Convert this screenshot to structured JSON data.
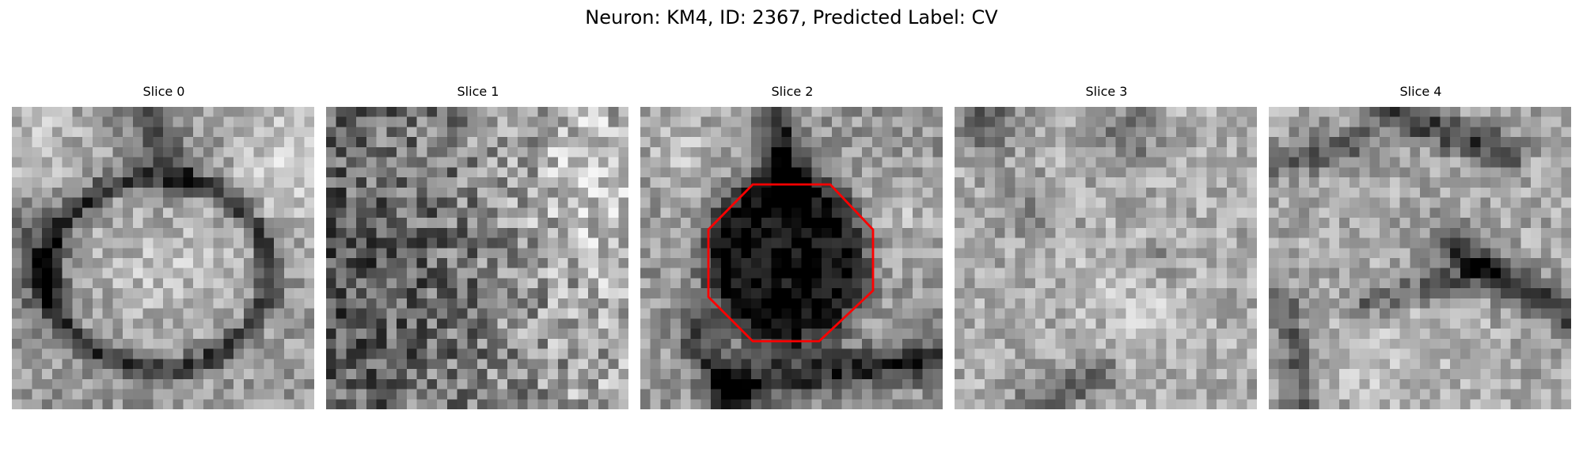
{
  "figure": {
    "title": "Neuron: KM4, ID: 2367, Predicted Label: CV"
  },
  "slices": [
    {
      "title": "Slice 0",
      "overlay": false
    },
    {
      "title": "Slice 1",
      "overlay": false
    },
    {
      "title": "Slice 2",
      "overlay": true,
      "overlay_shape": "octagon",
      "overlay_color": "#ff0000"
    },
    {
      "title": "Slice 3",
      "overlay": false
    },
    {
      "title": "Slice 4",
      "overlay": false
    }
  ],
  "colormap": "gray"
}
